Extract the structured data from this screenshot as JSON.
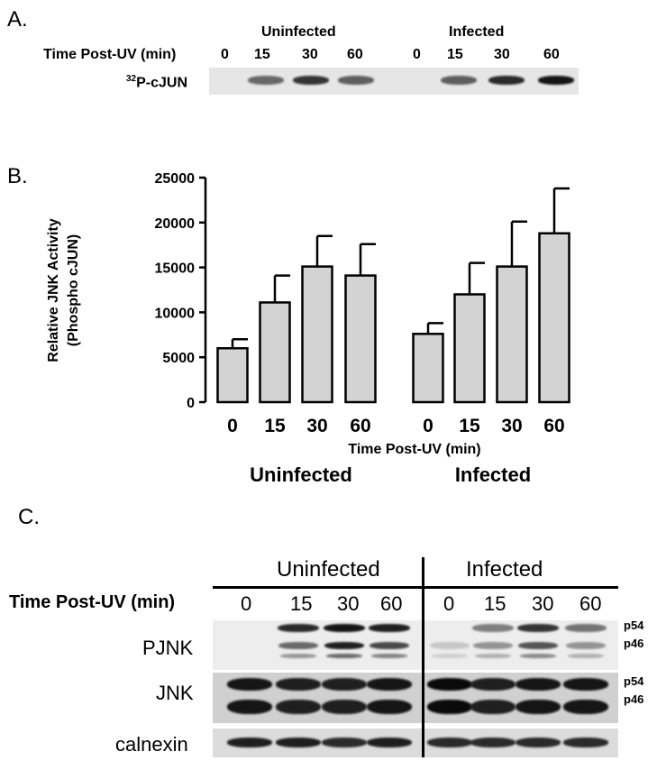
{
  "panel_a": {
    "label": "A.",
    "group_labels": [
      "Uninfected",
      "Infected"
    ],
    "row_label": "Time Post-UV (min)",
    "lanes": [
      "0",
      "15",
      "30",
      "60",
      "0",
      "15",
      "30",
      "60"
    ],
    "blot_label_sup": "32",
    "blot_label_rest": "P-cJUN",
    "band_intensity": [
      0.0,
      0.55,
      0.8,
      0.6,
      0.0,
      0.6,
      0.85,
      0.95
    ]
  },
  "panel_b": {
    "label": "B.",
    "chart_data": {
      "type": "bar",
      "groups": [
        "Uninfected",
        "Infected"
      ],
      "categories": [
        "0",
        "15",
        "30",
        "60"
      ],
      "series": [
        {
          "name": "Uninfected",
          "values": [
            6000,
            11100,
            15100,
            14100
          ],
          "errors": [
            1000,
            3000,
            3400,
            3500
          ]
        },
        {
          "name": "Infected",
          "values": [
            7600,
            12000,
            15100,
            18800
          ],
          "errors": [
            1200,
            3500,
            5000,
            5000
          ]
        }
      ],
      "xlabel": "Time Post-UV (min)",
      "ylabel_line1": "Relative JNK Activity",
      "ylabel_line2": "(Phospho cJUN)",
      "ylim": [
        0,
        25000
      ],
      "yticks": [
        0,
        5000,
        10000,
        15000,
        20000,
        25000
      ],
      "bar_color": "#d3d3d3"
    }
  },
  "panel_c": {
    "label": "C.",
    "group_labels": [
      "Uninfected",
      "Infected"
    ],
    "row_label": "Time Post-UV (min)",
    "lanes": [
      "0",
      "15",
      "30",
      "60",
      "0",
      "15",
      "30",
      "60"
    ],
    "rows": [
      "PJNK",
      "JNK",
      "calnexin"
    ],
    "pjnk_markers": [
      "p54",
      "p46"
    ],
    "jnk_markers": [
      "p54",
      "p46"
    ],
    "pjnk_p54_intensity": [
      0.0,
      0.85,
      0.95,
      0.9,
      0.0,
      0.45,
      0.8,
      0.5
    ],
    "pjnk_p46_intensity": [
      0.0,
      0.55,
      0.9,
      0.7,
      0.1,
      0.35,
      0.65,
      0.35
    ],
    "jnk_intensity": [
      0.95,
      0.9,
      0.9,
      0.95,
      1.0,
      0.9,
      0.95,
      0.95
    ],
    "calnexin_intensity": [
      0.9,
      0.9,
      0.85,
      0.9,
      0.85,
      0.85,
      0.85,
      0.85
    ]
  }
}
